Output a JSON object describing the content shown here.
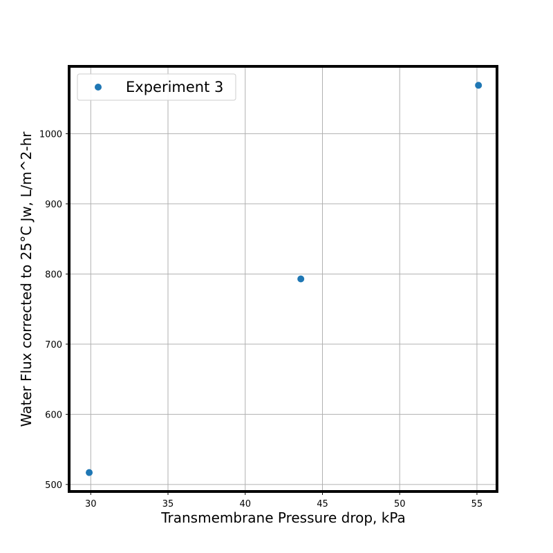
{
  "chart_data": {
    "type": "scatter",
    "title": "",
    "xlabel": "Transmembrane Pressure drop, kPa",
    "ylabel": "Water Flux corrected to 25°C Jw, L/m^2-hr",
    "xlim": [
      28.6,
      56.3
    ],
    "ylim": [
      490,
      1096
    ],
    "xticks": [
      30,
      35,
      40,
      45,
      50,
      55
    ],
    "yticks": [
      500,
      600,
      700,
      800,
      900,
      1000
    ],
    "grid": true,
    "legend_position": "top-left",
    "series": [
      {
        "name": "Experiment 3",
        "color": "#1f77b4",
        "marker": "circle",
        "x": [
          29.9,
          43.6,
          55.1
        ],
        "y": [
          517,
          793,
          1069
        ]
      }
    ]
  }
}
